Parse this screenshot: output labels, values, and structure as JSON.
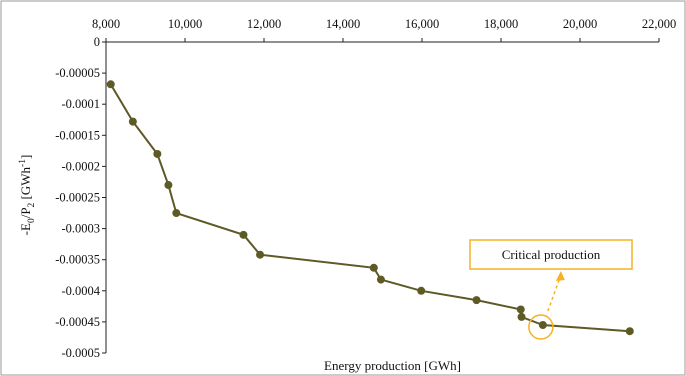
{
  "chart_data": {
    "type": "scatter",
    "title": "",
    "xlabel": "Energy production [GWh]",
    "ylabel": "-E0/P2 [GWh-1]",
    "ylabel_parts": {
      "base": "-E",
      "sub1": "0",
      "mid": "/P",
      "sub2": "2",
      "unit": " [GWh",
      "sup": "-1",
      "end": "]"
    },
    "xlim": [
      8000,
      22000
    ],
    "ylim": [
      -0.0005,
      0
    ],
    "x_ticks": [
      8000,
      10000,
      12000,
      14000,
      16000,
      18000,
      20000,
      22000
    ],
    "x_tick_labels": [
      "8,000",
      "10,000",
      "12,000",
      "14,000",
      "16,000",
      "18,000",
      "20,000",
      "22,000"
    ],
    "x_axis_position": "top",
    "y_ticks": [
      0,
      -5e-05,
      -0.0001,
      -0.00015,
      -0.0002,
      -0.00025,
      -0.0003,
      -0.00035,
      -0.0004,
      -0.00045,
      -0.0005
    ],
    "y_tick_labels": [
      "0",
      "-0.00005",
      "-0.0001",
      "-0.00015",
      "-0.0002",
      "-0.00025",
      "-0.0003",
      "-0.00035",
      "-0.0004",
      "-0.00045",
      "-0.0005"
    ],
    "grid": false,
    "legend": "none",
    "series": [
      {
        "x": [
          8120,
          8680,
          9300,
          9580,
          9780,
          11480,
          11900,
          14780,
          14960,
          15980,
          17380,
          18500,
          18520,
          19060,
          21260
        ],
        "y": [
          -6.8e-05,
          -0.000128,
          -0.00018,
          -0.00023,
          -0.000275,
          -0.00031,
          -0.000342,
          -0.000363,
          -0.000382,
          -0.0004,
          -0.000415,
          -0.00043,
          -0.000442,
          -0.000455,
          -0.000465
        ],
        "color": "#5e5a26"
      }
    ],
    "annotation": {
      "text": "Critical production",
      "point_x": 19060,
      "point_y": -0.000455,
      "highlight_color": "#f5b225"
    }
  }
}
